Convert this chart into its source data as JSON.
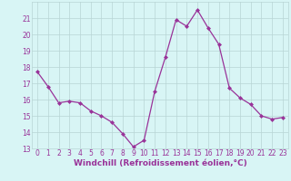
{
  "x": [
    0,
    1,
    2,
    3,
    4,
    5,
    6,
    7,
    8,
    9,
    10,
    11,
    12,
    13,
    14,
    15,
    16,
    17,
    18,
    19,
    20,
    21,
    22,
    23
  ],
  "y": [
    17.7,
    16.8,
    15.8,
    15.9,
    15.8,
    15.3,
    15.0,
    14.6,
    13.9,
    13.1,
    13.5,
    16.5,
    18.6,
    20.9,
    20.5,
    21.5,
    20.4,
    19.4,
    16.7,
    16.1,
    15.7,
    15.0,
    14.8,
    14.9
  ],
  "xlabel": "Windchill (Refroidissement éolien,°C)",
  "ylim": [
    13,
    22
  ],
  "xlim": [
    -0.5,
    23.5
  ],
  "yticks": [
    13,
    14,
    15,
    16,
    17,
    18,
    19,
    20,
    21
  ],
  "xticks": [
    0,
    1,
    2,
    3,
    4,
    5,
    6,
    7,
    8,
    9,
    10,
    11,
    12,
    13,
    14,
    15,
    16,
    17,
    18,
    19,
    20,
    21,
    22,
    23
  ],
  "line_color": "#993399",
  "marker": "D",
  "marker_size": 2.0,
  "line_width": 0.9,
  "bg_color": "#d8f5f5",
  "grid_color": "#b8d4d4",
  "tick_label_fontsize": 5.5,
  "xlabel_fontsize": 6.5
}
